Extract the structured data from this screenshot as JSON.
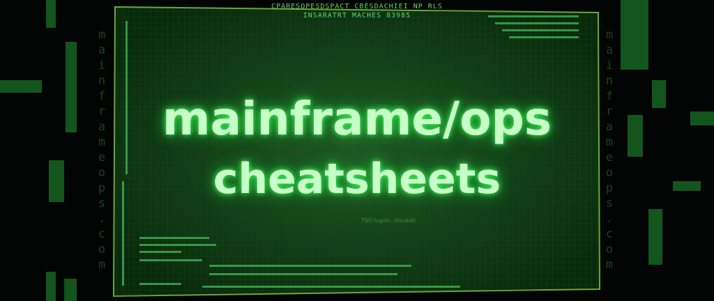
{
  "header": {
    "lines": [
      "CPARESOPESDSPACT CBESDACHIEI NP RLS",
      "INSARATRT MACHES 83985"
    ]
  },
  "title": {
    "line1": "mainframe/ops",
    "line2": "cheatsheets"
  },
  "caption": "TSO logon: cloudati",
  "watermark": {
    "left": "mainframeops.com",
    "right": "mainframeops.com"
  }
}
